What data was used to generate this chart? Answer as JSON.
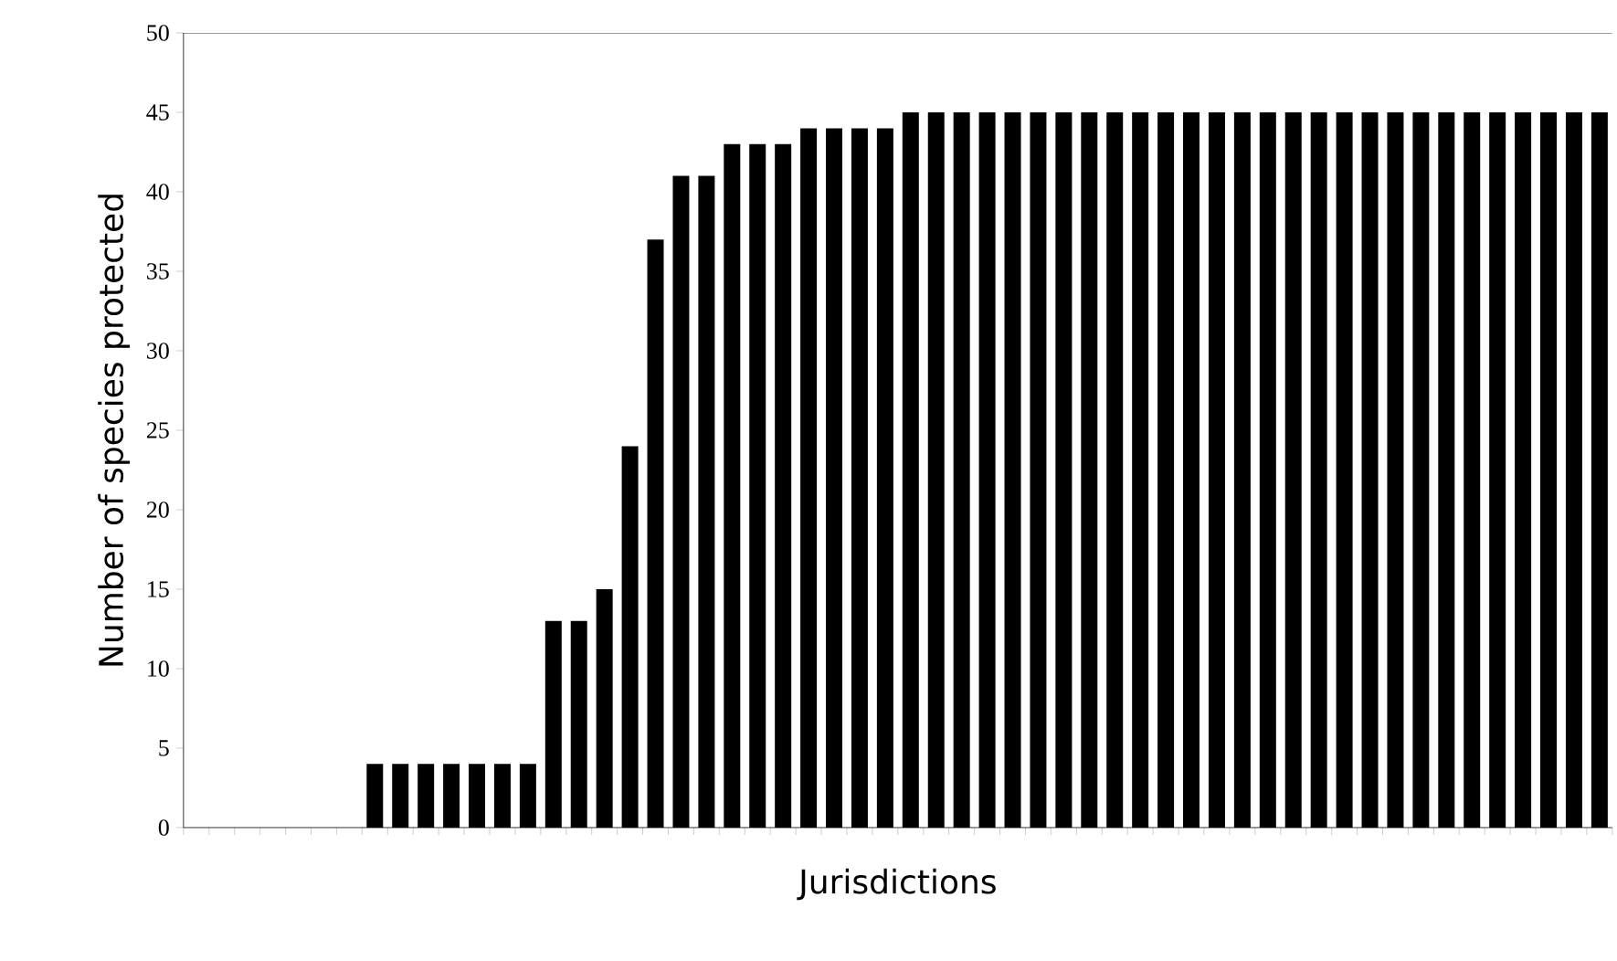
{
  "chart_data": {
    "type": "bar",
    "xlabel": "Jurisdictions",
    "ylabel": "Number of species protected",
    "categories": [
      null,
      null,
      null,
      null,
      null,
      null,
      null,
      null,
      null,
      null,
      null,
      null,
      null,
      null,
      null,
      null,
      null,
      null,
      null,
      null,
      null,
      null,
      null,
      null,
      null,
      null,
      null,
      null,
      null,
      null,
      null,
      null,
      null,
      null,
      null,
      null,
      null,
      null,
      null,
      null,
      null,
      null,
      null,
      null,
      null,
      null,
      null,
      null,
      null,
      null,
      null,
      null,
      null,
      null,
      null,
      null
    ],
    "values": [
      0,
      0,
      0,
      0,
      0,
      0,
      0,
      4,
      4,
      4,
      4,
      4,
      4,
      4,
      13,
      13,
      15,
      24,
      37,
      41,
      41,
      43,
      43,
      43,
      44,
      44,
      44,
      44,
      45,
      45,
      45,
      45,
      45,
      45,
      45,
      45,
      45,
      45,
      45,
      45,
      45,
      45,
      45,
      45,
      45,
      45,
      45,
      45,
      45,
      45,
      45,
      45,
      45,
      45,
      45,
      45
    ],
    "color": "#000000",
    "ylim": [
      0,
      50
    ],
    "yticks": [
      0,
      5,
      10,
      15,
      20,
      25,
      30,
      35,
      40,
      45,
      50
    ],
    "grid": false
  }
}
